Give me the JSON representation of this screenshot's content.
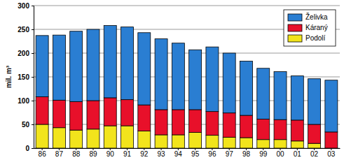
{
  "chart_data": {
    "type": "bar",
    "stacked": true,
    "grid": true,
    "legend": "upper right",
    "y_label": "mil. m³",
    "categories": [
      "86",
      "87",
      "88",
      "89",
      "90",
      "91",
      "92",
      "93",
      "94",
      "95",
      "96",
      "97",
      "98",
      "99",
      "00",
      "01",
      "02",
      "03"
    ],
    "series": [
      {
        "name": "Podolí",
        "color": "#f2e41c",
        "values": [
          50,
          43,
          38,
          40,
          47,
          47,
          36,
          28,
          28,
          33,
          27,
          23,
          22,
          18,
          18,
          15,
          10,
          0
        ]
      },
      {
        "name": "Káraný",
        "color": "#e8102a",
        "values": [
          58,
          58,
          60,
          60,
          59,
          55,
          55,
          53,
          53,
          48,
          50,
          51,
          47,
          43,
          42,
          44,
          40,
          34
        ]
      },
      {
        "name": "Želivka",
        "color": "#2a7ed2",
        "values": [
          129,
          137,
          148,
          150,
          152,
          153,
          152,
          149,
          140,
          126,
          136,
          126,
          114,
          107,
          101,
          93,
          96,
          109
        ]
      }
    ],
    "ylim": [
      0,
      300
    ],
    "yticks": [
      0,
      50,
      100,
      150,
      200,
      250,
      300
    ]
  }
}
